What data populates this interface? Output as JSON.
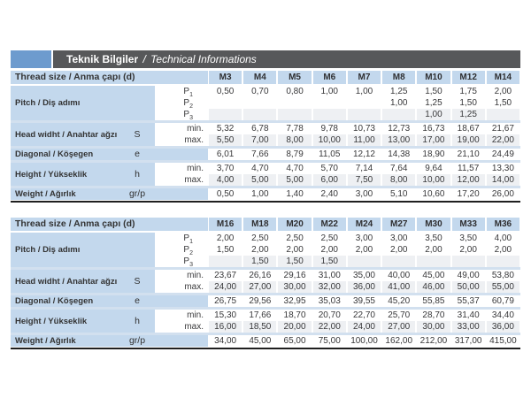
{
  "title_bar": {
    "title_tr": "Teknik Bilgiler",
    "separator": "/",
    "title_en": "Technical Informations"
  },
  "colors": {
    "accent_blue": "#6d9bce",
    "bar_dark": "#57585a",
    "cell_blue": "#c3d8ed",
    "shaded_row": "#eef0f3",
    "divider_blue": "#d2e0ef",
    "rule_black": "#1f1f1f"
  },
  "tables": [
    {
      "header_label": "Thread size / Anma çapı (d)",
      "columns": [
        "M3",
        "M4",
        "M5",
        "M6",
        "M7",
        "M8",
        "M10",
        "M12",
        "M14"
      ],
      "groups": [
        {
          "label": "Pitch / Diş adımı",
          "symbol": "",
          "rows": [
            {
              "sub": "P",
              "sub_index": "1",
              "shaded": false,
              "values": [
                "0,50",
                "0,70",
                "0,80",
                "1,00",
                "1,00",
                "1,25",
                "1,50",
                "1,75",
                "2,00"
              ]
            },
            {
              "sub": "P",
              "sub_index": "2",
              "shaded": false,
              "values": [
                "",
                "",
                "",
                "",
                "",
                "1,00",
                "1,25",
                "1,50",
                "1,50"
              ]
            },
            {
              "sub": "P",
              "sub_index": "3",
              "shaded": true,
              "values": [
                "",
                "",
                "",
                "",
                "",
                "",
                "1,00",
                "1,25",
                ""
              ]
            }
          ]
        },
        {
          "label": "Head widht / Anahtar ağzı",
          "symbol": "S",
          "rows": [
            {
              "sub": "min.",
              "shaded": false,
              "values": [
                "5,32",
                "6,78",
                "7,78",
                "9,78",
                "10,73",
                "12,73",
                "16,73",
                "18,67",
                "21,67"
              ]
            },
            {
              "sub": "max.",
              "shaded": true,
              "values": [
                "5,50",
                "7,00",
                "8,00",
                "10,00",
                "11,00",
                "13,00",
                "17,00",
                "19,00",
                "22,00"
              ]
            }
          ]
        },
        {
          "label": "Diagonal / Köşegen",
          "symbol": "e",
          "rows": [
            {
              "sub": "",
              "shaded": false,
              "values": [
                "6,01",
                "7,66",
                "8,79",
                "11,05",
                "12,12",
                "14,38",
                "18,90",
                "21,10",
                "24,49"
              ]
            }
          ]
        },
        {
          "label": "Height / Yükseklik",
          "symbol": "h",
          "rows": [
            {
              "sub": "min.",
              "shaded": false,
              "values": [
                "3,70",
                "4,70",
                "4,70",
                "5,70",
                "7,14",
                "7,64",
                "9,64",
                "11,57",
                "13,30"
              ]
            },
            {
              "sub": "max.",
              "shaded": true,
              "values": [
                "4,00",
                "5,00",
                "5,00",
                "6,00",
                "7,50",
                "8,00",
                "10,00",
                "12,00",
                "14,00"
              ]
            }
          ]
        },
        {
          "label": "Weight / Ağırlık",
          "symbol": "gr/p",
          "rows": [
            {
              "sub": "",
              "shaded": false,
              "values": [
                "0,50",
                "1,00",
                "1,40",
                "2,40",
                "3,00",
                "5,10",
                "10,60",
                "17,20",
                "26,00"
              ]
            }
          ]
        }
      ]
    },
    {
      "header_label": "Thread size / Anma çapı (d)",
      "columns": [
        "M16",
        "M18",
        "M20",
        "M22",
        "M24",
        "M27",
        "M30",
        "M33",
        "M36"
      ],
      "groups": [
        {
          "label": "Pitch / Diş adımı",
          "symbol": "",
          "rows": [
            {
              "sub": "P",
              "sub_index": "1",
              "shaded": false,
              "values": [
                "2,00",
                "2,50",
                "2,50",
                "2,50",
                "3,00",
                "3,00",
                "3,50",
                "3,50",
                "4,00"
              ]
            },
            {
              "sub": "P",
              "sub_index": "2",
              "shaded": false,
              "values": [
                "1,50",
                "2,00",
                "2,00",
                "2,00",
                "2,00",
                "2,00",
                "2,00",
                "2,00",
                "2,00"
              ]
            },
            {
              "sub": "P",
              "sub_index": "3",
              "shaded": true,
              "values": [
                "",
                "1,50",
                "1,50",
                "1,50",
                "",
                "",
                "",
                "",
                ""
              ]
            }
          ]
        },
        {
          "label": "Head widht / Anahtar ağzı",
          "symbol": "S",
          "rows": [
            {
              "sub": "min.",
              "shaded": false,
              "values": [
                "23,67",
                "26,16",
                "29,16",
                "31,00",
                "35,00",
                "40,00",
                "45,00",
                "49,00",
                "53,80"
              ]
            },
            {
              "sub": "max.",
              "shaded": true,
              "values": [
                "24,00",
                "27,00",
                "30,00",
                "32,00",
                "36,00",
                "41,00",
                "46,00",
                "50,00",
                "55,00"
              ]
            }
          ]
        },
        {
          "label": "Diagonal / Köşegen",
          "symbol": "e",
          "rows": [
            {
              "sub": "",
              "shaded": false,
              "values": [
                "26,75",
                "29,56",
                "32,95",
                "35,03",
                "39,55",
                "45,20",
                "55,85",
                "55,37",
                "60,79"
              ]
            }
          ]
        },
        {
          "label": "Height / Yükseklik",
          "symbol": "h",
          "rows": [
            {
              "sub": "min.",
              "shaded": false,
              "values": [
                "15,30",
                "17,66",
                "18,70",
                "20,70",
                "22,70",
                "25,70",
                "28,70",
                "31,40",
                "34,40"
              ]
            },
            {
              "sub": "max.",
              "shaded": true,
              "values": [
                "16,00",
                "18,50",
                "20,00",
                "22,00",
                "24,00",
                "27,00",
                "30,00",
                "33,00",
                "36,00"
              ]
            }
          ]
        },
        {
          "label": "Weight / Ağırlık",
          "symbol": "gr/p",
          "rows": [
            {
              "sub": "",
              "shaded": false,
              "values": [
                "34,00",
                "45,00",
                "65,00",
                "75,00",
                "100,00",
                "162,00",
                "212,00",
                "317,00",
                "415,00"
              ]
            }
          ]
        }
      ]
    }
  ]
}
